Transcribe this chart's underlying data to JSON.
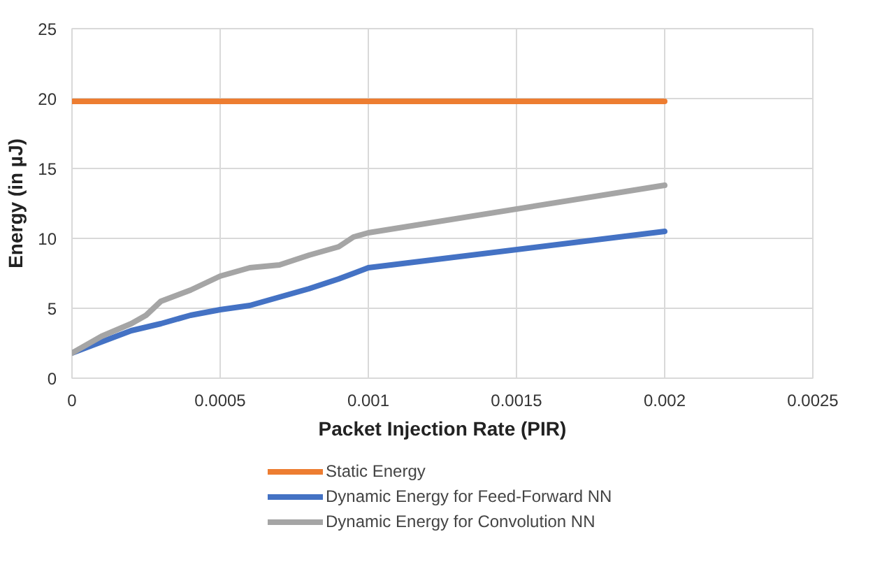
{
  "chart_data": {
    "type": "line",
    "xlabel": "Packet Injection Rate (PIR)",
    "ylabel": "Energy (in µJ)",
    "xlim": [
      0,
      0.0025
    ],
    "ylim": [
      0,
      25
    ],
    "xticks": [
      0,
      0.0005,
      0.001,
      0.0015,
      0.002,
      0.0025
    ],
    "yticks": [
      0,
      5,
      10,
      15,
      20,
      25
    ],
    "grid": true,
    "legend": "bottom",
    "line_style": "solid",
    "series": [
      {
        "name": "Static Energy",
        "color": "#ed7d31",
        "x": [
          0,
          0.002
        ],
        "values": [
          19.8,
          19.8
        ]
      },
      {
        "name": "Dynamic Energy for Feed-Forward NN",
        "color": "#4472c4",
        "x": [
          0,
          0.0001,
          0.0002,
          0.0003,
          0.0004,
          0.0005,
          0.0006,
          0.0007,
          0.0008,
          0.0009,
          0.001,
          0.002
        ],
        "values": [
          1.8,
          2.6,
          3.4,
          3.9,
          4.5,
          4.9,
          5.2,
          5.8,
          6.4,
          7.1,
          7.9,
          10.5
        ]
      },
      {
        "name": "Dynamic Energy for Convolution NN",
        "color": "#a5a5a5",
        "x": [
          0,
          0.0001,
          0.0002,
          0.00025,
          0.0003,
          0.0004,
          0.0005,
          0.0006,
          0.0007,
          0.0008,
          0.0009,
          0.00095,
          0.001,
          0.002
        ],
        "values": [
          1.8,
          3.0,
          3.9,
          4.5,
          5.5,
          6.3,
          7.3,
          7.9,
          8.1,
          8.8,
          9.4,
          10.1,
          10.4,
          13.8
        ]
      }
    ]
  }
}
